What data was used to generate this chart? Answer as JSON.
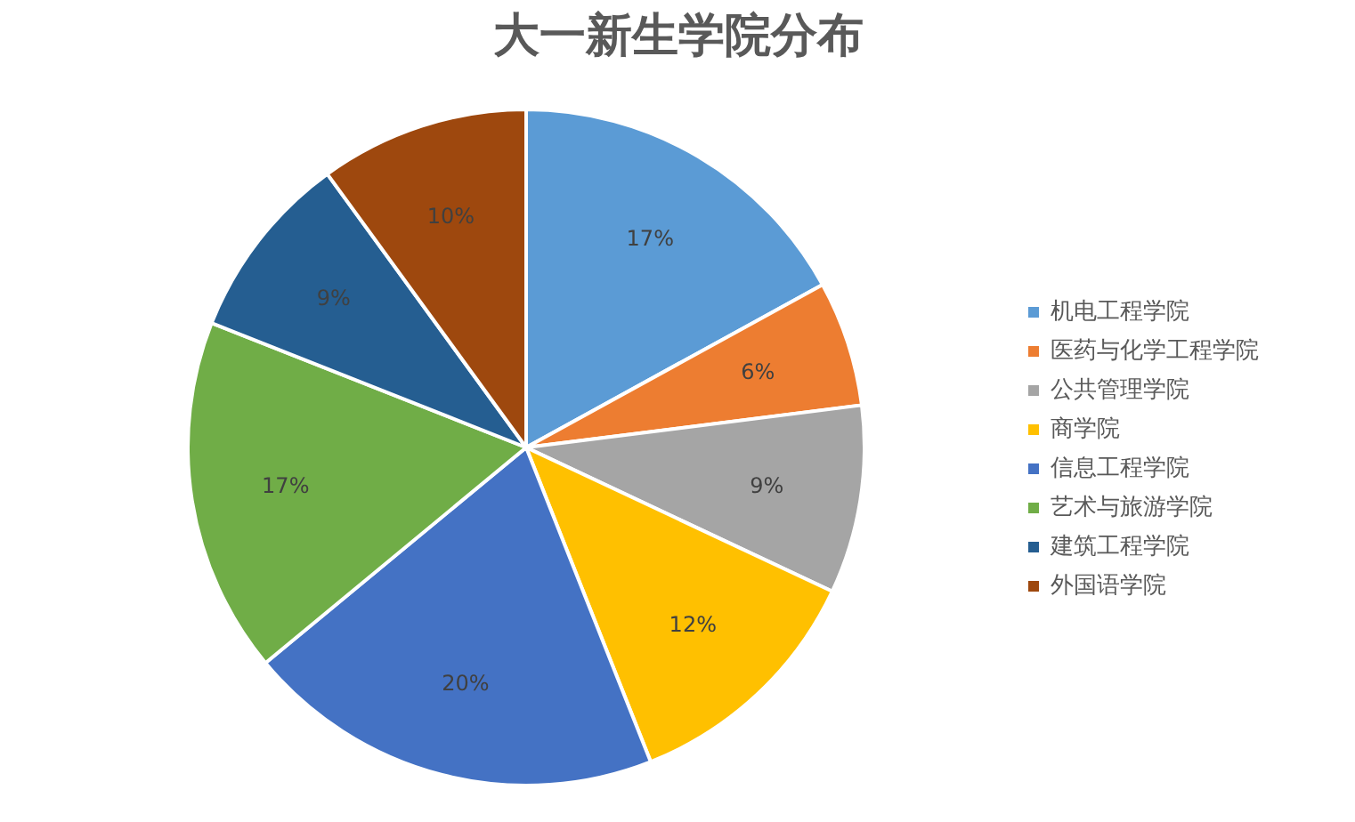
{
  "chart_data": {
    "type": "pie",
    "title": "大一新生学院分布",
    "categories": [
      "机电工程学院",
      "医药与化学工程学院",
      "公共管理学院",
      "商学院",
      "信息工程学院",
      "艺术与旅游学院",
      "建筑工程学院",
      "外国语学院"
    ],
    "values": [
      17,
      6,
      9,
      12,
      20,
      17,
      9,
      10
    ],
    "value_labels": [
      "17%",
      "6%",
      "9%",
      "12%",
      "20%",
      "17%",
      "9%",
      "10%"
    ],
    "colors": [
      "#5b9bd5",
      "#ed7d31",
      "#a5a5a5",
      "#ffc000",
      "#4472c4",
      "#70ad47",
      "#255e91",
      "#9e480e"
    ],
    "legend": "right"
  }
}
